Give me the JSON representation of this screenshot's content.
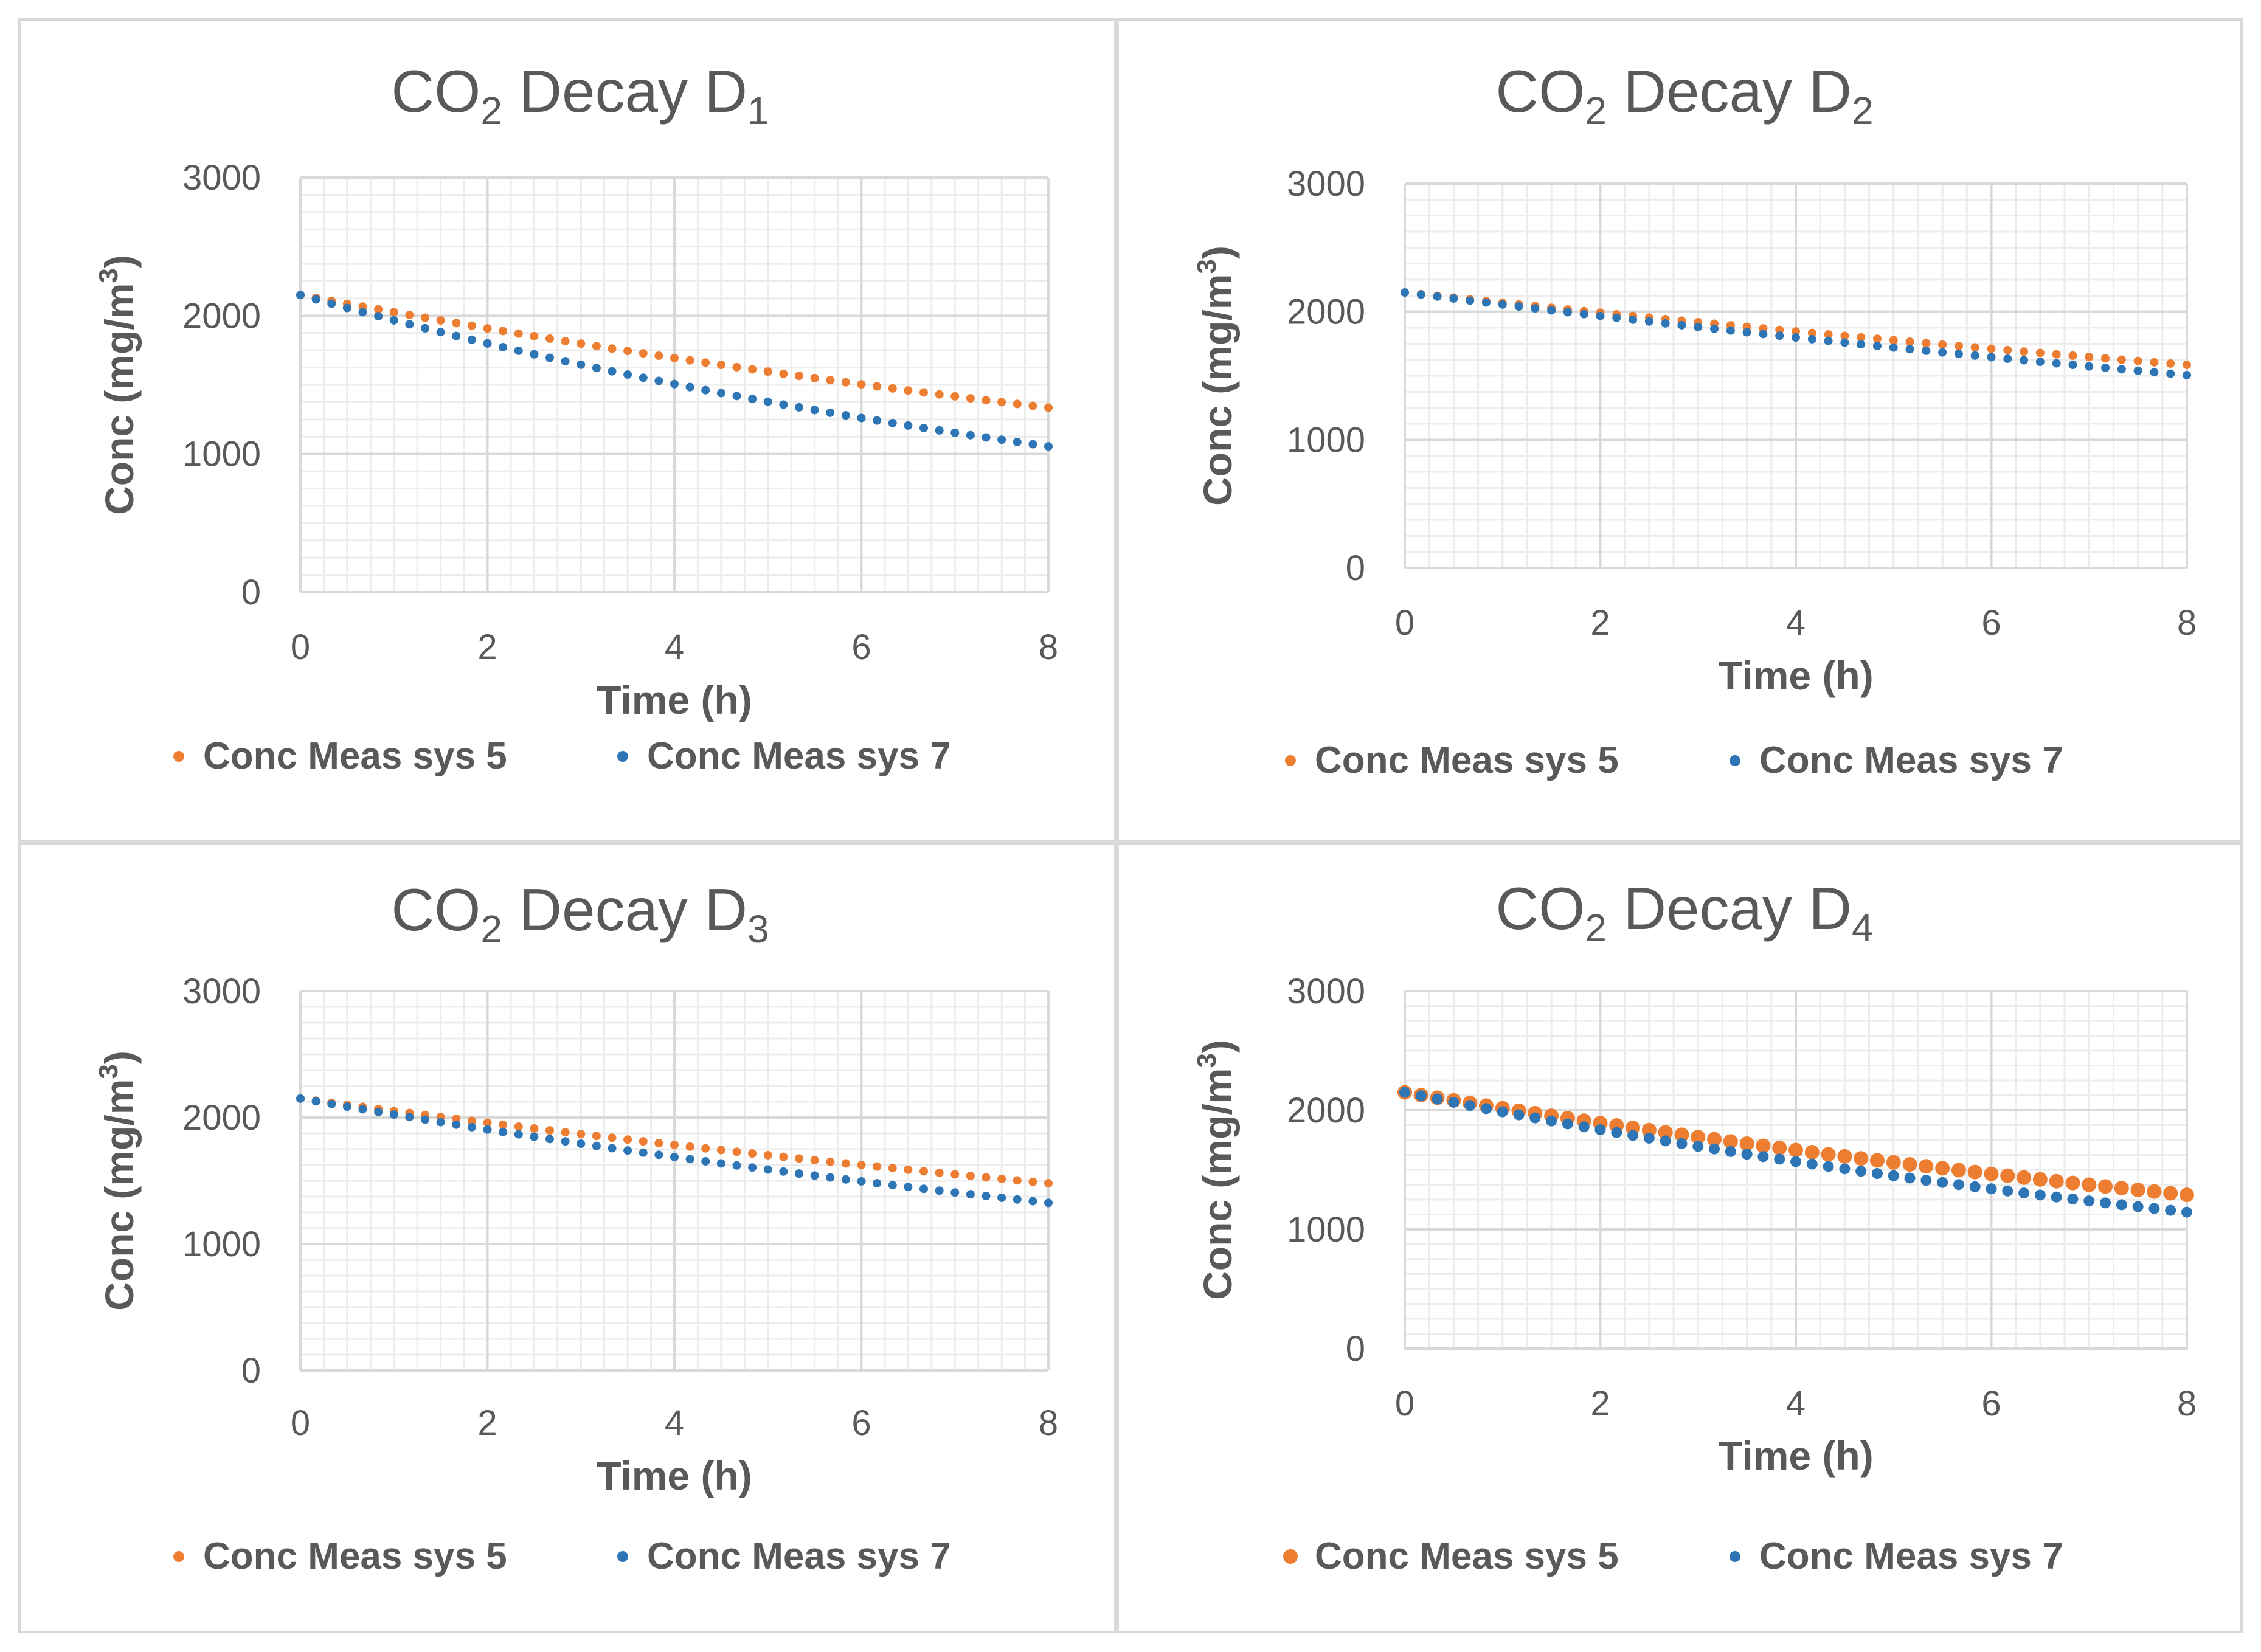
{
  "colors": {
    "series5": "#ed7d31",
    "series7": "#2e75b6",
    "text": "#595959",
    "grid_major": "#d9d9d9",
    "grid_minor": "#ececec"
  },
  "chart_data": [
    {
      "type": "scatter",
      "title": {
        "main": "CO",
        "sub1": "2",
        "mid": " Decay D",
        "sub2": "1"
      },
      "xlabel": "Time (h)",
      "ylabel": {
        "main": "Conc (mg/m",
        "sup": "3",
        "end": ")"
      },
      "xlim": [
        0,
        8
      ],
      "ylim": [
        0,
        3000
      ],
      "x_ticks": [
        "0",
        "2",
        "4",
        "6",
        "8"
      ],
      "y_ticks": [
        "0",
        "1000",
        "2000",
        "3000"
      ],
      "series": [
        {
          "name": "Conc Meas sys 5",
          "color": "#ed7d31",
          "x_start": 0,
          "x_end": 8,
          "n_points": 49,
          "y_start": 2150,
          "y_end": 1335
        },
        {
          "name": "Conc Meas sys 7",
          "color": "#2e75b6",
          "x_start": 0,
          "x_end": 8,
          "n_points": 49,
          "y_start": 2150,
          "y_end": 1055
        }
      ],
      "legend": [
        "Conc Meas sys 5",
        "Conc Meas sys 7"
      ]
    },
    {
      "type": "scatter",
      "title": {
        "main": "CO",
        "sub1": "2",
        "mid": " Decay D",
        "sub2": "2"
      },
      "xlabel": "Time (h)",
      "ylabel": {
        "main": "Conc (mg/m",
        "sup": "3",
        "end": ")"
      },
      "xlim": [
        0,
        8
      ],
      "ylim": [
        0,
        3000
      ],
      "x_ticks": [
        "0",
        "2",
        "4",
        "6",
        "8"
      ],
      "y_ticks": [
        "0",
        "1000",
        "2000",
        "3000"
      ],
      "series": [
        {
          "name": "Conc Meas sys 5",
          "color": "#ed7d31",
          "x_start": 0,
          "x_end": 8,
          "n_points": 49,
          "y_start": 2150,
          "y_end": 1585
        },
        {
          "name": "Conc Meas sys 7",
          "color": "#2e75b6",
          "x_start": 0,
          "x_end": 8,
          "n_points": 49,
          "y_start": 2150,
          "y_end": 1505
        }
      ],
      "legend": [
        "Conc Meas sys 5",
        "Conc Meas sys 7"
      ]
    },
    {
      "type": "scatter",
      "title": {
        "main": "CO",
        "sub1": "2",
        "mid": " Decay D",
        "sub2": "3"
      },
      "xlabel": "Time (h)",
      "ylabel": {
        "main": "Conc (mg/m",
        "sup": "3",
        "end": ")"
      },
      "xlim": [
        0,
        8
      ],
      "ylim": [
        0,
        3000
      ],
      "x_ticks": [
        "0",
        "2",
        "4",
        "6",
        "8"
      ],
      "y_ticks": [
        "0",
        "1000",
        "2000",
        "3000"
      ],
      "series": [
        {
          "name": "Conc Meas sys 5",
          "color": "#ed7d31",
          "x_start": 0,
          "x_end": 8,
          "n_points": 49,
          "y_start": 2150,
          "y_end": 1480
        },
        {
          "name": "Conc Meas sys 7",
          "color": "#2e75b6",
          "x_start": 0,
          "x_end": 8,
          "n_points": 49,
          "y_start": 2150,
          "y_end": 1325
        }
      ],
      "legend": [
        "Conc Meas sys 5",
        "Conc Meas sys 7"
      ]
    },
    {
      "type": "scatter",
      "title": {
        "main": "CO",
        "sub1": "2",
        "mid": " Decay D",
        "sub2": "4"
      },
      "xlabel": "Time (h)",
      "ylabel": {
        "main": "Conc (mg/m",
        "sup": "3",
        "end": ")"
      },
      "xlim": [
        0,
        8
      ],
      "ylim": [
        0,
        3000
      ],
      "x_ticks": [
        "0",
        "2",
        "4",
        "6",
        "8"
      ],
      "y_ticks": [
        "0",
        "1000",
        "2000",
        "3000"
      ],
      "series": [
        {
          "name": "Conc Meas sys 5",
          "color": "#ed7d31",
          "x_start": 0,
          "x_end": 8,
          "n_points": 49,
          "y_start": 2150,
          "y_end": 1290
        },
        {
          "name": "Conc Meas sys 7",
          "color": "#2e75b6",
          "x_start": 0,
          "x_end": 8,
          "n_points": 49,
          "y_start": 2150,
          "y_end": 1145
        }
      ],
      "legend": [
        "Conc Meas sys 5",
        "Conc Meas sys 7"
      ]
    }
  ]
}
